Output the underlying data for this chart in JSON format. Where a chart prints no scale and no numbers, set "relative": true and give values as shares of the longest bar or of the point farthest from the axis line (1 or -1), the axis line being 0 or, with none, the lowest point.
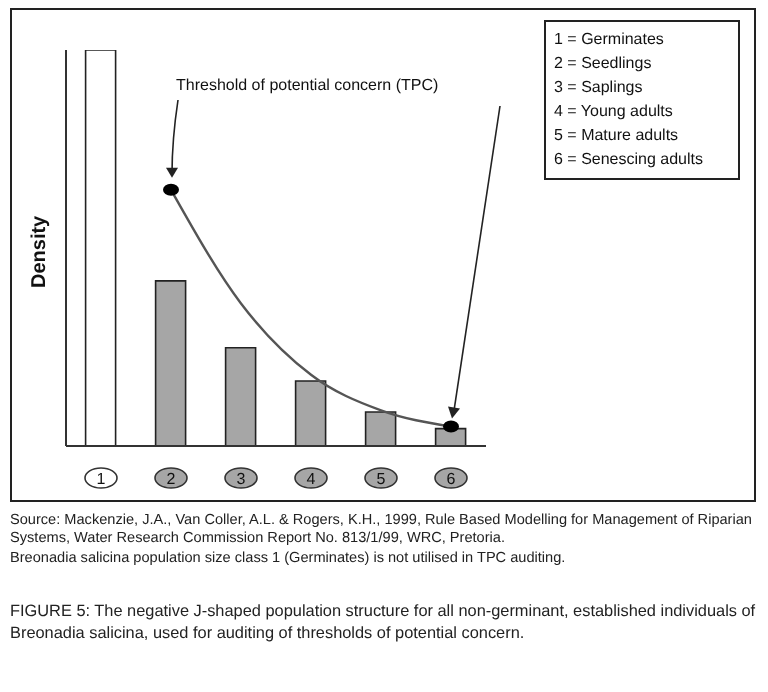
{
  "chart_data": {
    "type": "bar",
    "relative": true,
    "ylabel": "Density",
    "categories": [
      "1",
      "2",
      "3",
      "4",
      "5",
      "6"
    ],
    "series": [
      {
        "colors": [
          "#ffffff",
          "#a6a6a6",
          "#a6a6a6",
          "#a6a6a6",
          "#a6a6a6",
          "#a6a6a6"
        ],
        "values": [
          1,
          0.417,
          0.248,
          0.164,
          0.086,
          0.044
        ]
      },
      {
        "type": "line",
        "color": "#555555",
        "values": [
          null,
          0.647,
          0.36,
          0.18,
          0.09,
          0.049
        ]
      },
      {
        "type": "scatter",
        "color": "#000000",
        "values": [
          null,
          0.647,
          null,
          null,
          null,
          0.049
        ]
      }
    ],
    "annotations": [
      "Threshold of potential concern (TPC)",
      "1 = Germinates",
      "2 = Seedlings",
      "3 = Saplings",
      "4 = Young adults",
      "5 = Mature adults",
      "6 = Senescing adults",
      "Source: Mackenzie, J.A., Van Coller, A.L. & Rogers, K.H., 1999, Rule Based Modelling for Management of Riparian Systems, Water Research Commission Report No. 813/1/99, WRC, Pretoria.",
      "Breonadia salicina population size class 1 (Germinates) is not utilised in TPC auditing.",
      "FIGURE 5: The negative J-shaped population structure for all non-germinant, established individuals of Breonadia salicina, used for auditing of thresholds of potential concern."
    ]
  }
}
